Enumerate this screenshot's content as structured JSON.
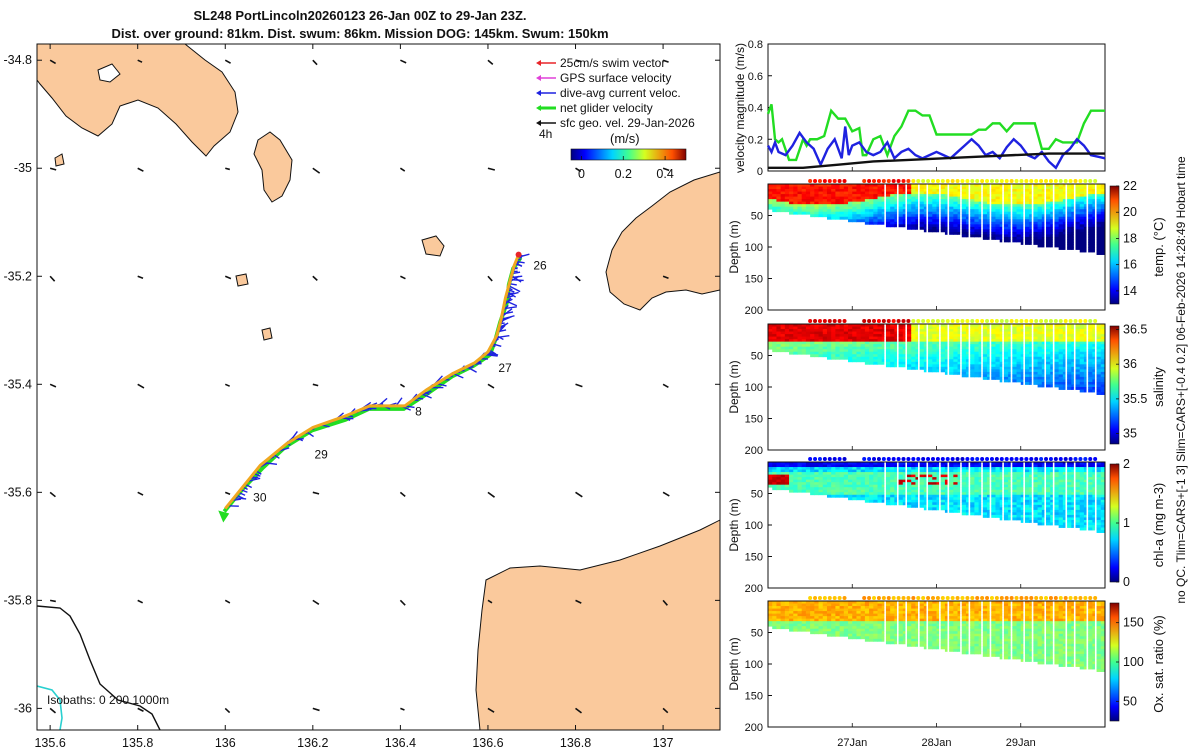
{
  "title_line1": "SL248 PortLincoln20260123 26-Jan 00Z to 29-Jan 23Z.",
  "title_line2": "Dist. over ground: 81km. Dist. swum: 86km. Mission DOG: 145km. Swum: 150km",
  "side_note": "no QC. Tlim=CARS+[-1 3] Slim=CARS+[-0.4 0.2] 06-Feb-2026 14:28:49 Hobart time",
  "chart_data": [
    {
      "type": "map",
      "name": "track-map",
      "xlim": [
        135.57,
        137.13
      ],
      "ylim": [
        -36.04,
        -34.77
      ],
      "xticks": [
        135.6,
        135.8,
        136,
        136.2,
        136.4,
        136.6,
        136.8,
        137
      ],
      "xtick_labels": [
        "135.6",
        "135.8",
        "136",
        "136.2",
        "136.4",
        "136.6",
        "136.8",
        "137"
      ],
      "yticks": [
        -34.8,
        -35,
        -35.2,
        -35.4,
        -35.6,
        -35.8,
        -36
      ],
      "ytick_labels": [
        "-34.8",
        "-35",
        "-35.2",
        "-35.4",
        "-35.6",
        "-35.8",
        "-36"
      ],
      "legend": [
        {
          "label": "25cm/s swim vector",
          "color": "#e8252a"
        },
        {
          "label": "GPS surface velocity",
          "color": "#e040d8"
        },
        {
          "label": "dive-avg current veloc.",
          "color": "#1f22e0"
        },
        {
          "label": "net glider velocity",
          "color": "#22dd22"
        },
        {
          "label": "sfc geo. vel. 29-Jan-2026",
          "color": "#111111"
        }
      ],
      "legend_note": "4h",
      "colorbar": {
        "label": "(m/s)",
        "ticks": [
          "0",
          "0.2",
          "0.4"
        ],
        "range": [
          -0.05,
          0.5
        ]
      },
      "isobaths_label": "Isobaths: 0   200  1000m",
      "day_labels": [
        {
          "text": "26",
          "lon": 136.69,
          "lat": -35.18
        },
        {
          "text": "27",
          "lon": 136.61,
          "lat": -35.37
        },
        {
          "text": "8",
          "lon": 136.42,
          "lat": -35.45
        },
        {
          "text": "29",
          "lon": 136.19,
          "lat": -35.53
        },
        {
          "text": "30",
          "lon": 136.05,
          "lat": -35.61
        }
      ],
      "track": [
        [
          136.67,
          -35.16
        ],
        [
          136.66,
          -35.18
        ],
        [
          136.65,
          -35.21
        ],
        [
          136.64,
          -35.24
        ],
        [
          136.63,
          -35.28
        ],
        [
          136.62,
          -35.31
        ],
        [
          136.6,
          -35.34
        ],
        [
          136.57,
          -35.36
        ],
        [
          136.52,
          -35.38
        ],
        [
          136.46,
          -35.41
        ],
        [
          136.41,
          -35.44
        ],
        [
          136.33,
          -35.44
        ],
        [
          136.27,
          -35.46
        ],
        [
          136.2,
          -35.48
        ],
        [
          136.14,
          -35.51
        ],
        [
          136.08,
          -35.55
        ],
        [
          136.04,
          -35.59
        ],
        [
          136.0,
          -35.63
        ]
      ]
    },
    {
      "type": "line",
      "name": "velocity-magnitude",
      "ylabel": "velocity magnitude (m/s)",
      "ylim": [
        0,
        0.8
      ],
      "yticks": [
        0,
        0.2,
        0.4,
        0.6,
        0.8
      ],
      "ytick_labels": [
        "0",
        "0.2",
        "0.4",
        "0.6",
        "0.8"
      ],
      "xlim": [
        0,
        96
      ],
      "series": [
        {
          "name": "net glider velocity",
          "color": "#22dd22",
          "x": [
            0,
            1,
            2,
            3,
            4,
            6,
            8,
            10,
            11,
            12,
            14,
            16,
            18,
            20,
            22,
            24,
            26,
            27,
            28,
            30,
            32,
            34,
            36,
            38,
            40,
            42,
            44,
            46,
            48,
            50,
            52,
            54,
            56,
            58,
            60,
            62,
            64,
            66,
            68,
            70,
            72,
            74,
            76,
            78,
            80,
            82,
            84,
            86,
            88,
            90,
            92,
            94,
            96
          ],
          "y": [
            0.36,
            0.42,
            0.2,
            0.18,
            0.2,
            0.07,
            0.07,
            0.2,
            0.16,
            0.2,
            0.2,
            0.22,
            0.38,
            0.33,
            0.33,
            0.25,
            0.27,
            0.1,
            0.1,
            0.2,
            0.22,
            0.1,
            0.22,
            0.28,
            0.38,
            0.38,
            0.35,
            0.35,
            0.23,
            0.23,
            0.23,
            0.23,
            0.23,
            0.23,
            0.26,
            0.26,
            0.3,
            0.3,
            0.25,
            0.3,
            0.3,
            0.3,
            0.3,
            0.14,
            0.14,
            0.2,
            0.18,
            0.18,
            0.18,
            0.3,
            0.38,
            0.38,
            0.38
          ]
        },
        {
          "name": "dive-avg current veloc.",
          "color": "#1f22e0",
          "x": [
            0,
            1,
            2,
            3,
            5,
            7,
            9,
            11,
            13,
            15,
            17,
            19,
            21,
            22,
            23,
            24,
            26,
            28,
            30,
            32,
            34,
            36,
            38,
            40,
            42,
            44,
            46,
            48,
            50,
            52,
            54,
            56,
            58,
            60,
            62,
            64,
            66,
            68,
            70,
            72,
            74,
            76,
            78,
            80,
            82,
            84,
            86,
            88,
            90,
            92,
            94,
            96
          ],
          "y": [
            0.16,
            0.12,
            0.18,
            0.12,
            0.1,
            0.16,
            0.24,
            0.18,
            0.14,
            0.04,
            0.14,
            0.2,
            0.08,
            0.28,
            0.1,
            0.16,
            0.18,
            0.12,
            0.1,
            0.12,
            0.18,
            0.08,
            0.12,
            0.14,
            0.1,
            0.08,
            0.1,
            0.12,
            0.1,
            0.08,
            0.12,
            0.16,
            0.2,
            0.16,
            0.1,
            0.12,
            0.08,
            0.15,
            0.2,
            0.16,
            0.1,
            0.08,
            0.12,
            0.06,
            0.02,
            0.1,
            0.14,
            0.2,
            0.16,
            0.1,
            0.09,
            0.08
          ]
        },
        {
          "name": "sfc geo. vel.",
          "color": "#111111",
          "x": [
            0,
            10,
            20,
            30,
            40,
            50,
            60,
            70,
            80,
            90,
            96
          ],
          "y": [
            0.02,
            0.02,
            0.04,
            0.06,
            0.07,
            0.08,
            0.09,
            0.1,
            0.11,
            0.11,
            0.11
          ]
        }
      ]
    },
    {
      "type": "heatmap",
      "name": "temperature-section",
      "ylabel": "Depth (m)",
      "ylim": [
        0,
        200
      ],
      "yticks": [
        50,
        100,
        150,
        200
      ],
      "ytick_labels": [
        "50",
        "100",
        "150",
        "200"
      ],
      "colorbar": {
        "label": "temp. (°C)",
        "range": [
          13,
          22
        ],
        "ticks": [
          "14",
          "16",
          "18",
          "20",
          "22"
        ],
        "values": [
          14,
          16,
          18,
          20,
          22
        ]
      }
    },
    {
      "type": "heatmap",
      "name": "salinity-section",
      "ylabel": "Depth (m)",
      "ylim": [
        0,
        200
      ],
      "yticks": [
        50,
        100,
        150,
        200
      ],
      "ytick_labels": [
        "50",
        "100",
        "150",
        "200"
      ],
      "colorbar": {
        "label": "salinity",
        "range": [
          34.85,
          36.55
        ],
        "ticks": [
          "35",
          "35.5",
          "36",
          "36.5"
        ],
        "values": [
          35,
          35.5,
          36,
          36.5
        ]
      }
    },
    {
      "type": "heatmap",
      "name": "chlorophyll-section",
      "ylabel": "Depth (m)",
      "ylim": [
        0,
        200
      ],
      "yticks": [
        50,
        100,
        150,
        200
      ],
      "ytick_labels": [
        "50",
        "100",
        "150",
        "200"
      ],
      "colorbar": {
        "label": "chl-a (mg m-3)",
        "range": [
          0,
          2
        ],
        "ticks": [
          "0",
          "1",
          "2"
        ],
        "values": [
          0,
          1,
          2
        ]
      }
    },
    {
      "type": "heatmap",
      "name": "oxygen-section",
      "ylabel": "Depth (m)",
      "ylim": [
        0,
        200
      ],
      "yticks": [
        50,
        100,
        150,
        200
      ],
      "ytick_labels": [
        "50",
        "100",
        "150",
        "200"
      ],
      "colorbar": {
        "label": "Ox. sat. ratio (%)",
        "range": [
          25,
          175
        ],
        "ticks": [
          "50",
          "100",
          "150"
        ],
        "values": [
          50,
          100,
          150
        ]
      }
    }
  ],
  "time_axis": {
    "ticks": [
      "27Jan",
      "28Jan",
      "29Jan"
    ],
    "hours": [
      24,
      48,
      72
    ],
    "range_hours": [
      0,
      96
    ]
  }
}
